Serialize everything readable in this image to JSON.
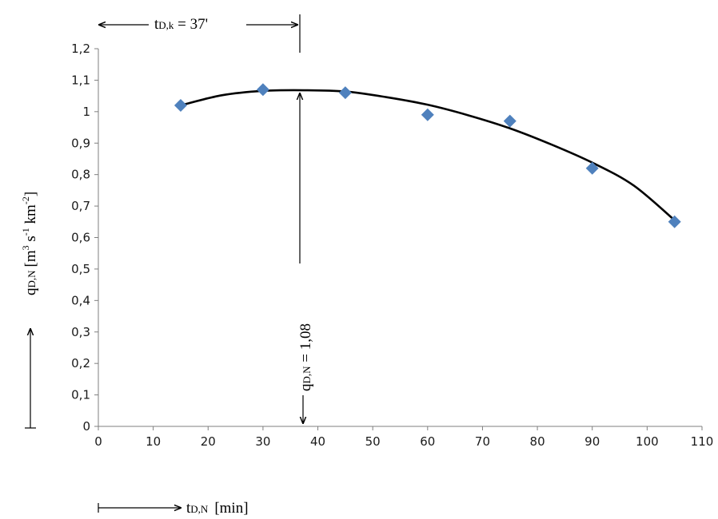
{
  "chart_data": {
    "type": "scatter",
    "title": "",
    "x": [
      15,
      30,
      45,
      60,
      75,
      90,
      105
    ],
    "series": [
      {
        "name": "",
        "type": "scatter",
        "color": "#4f81bd",
        "marker": "diamond",
        "values": [
          1.02,
          1.07,
          1.06,
          0.99,
          0.97,
          0.82,
          0.65
        ]
      }
    ],
    "trend": {
      "type": "polynomial-2",
      "color": "#000000",
      "x": [
        15,
        22.5,
        30,
        37.5,
        45,
        52.5,
        60,
        67.5,
        75,
        82.5,
        90,
        97.5,
        105
      ],
      "values": [
        1.02,
        1.052,
        1.066,
        1.068,
        1.064,
        1.046,
        1.022,
        0.988,
        0.947,
        0.896,
        0.838,
        0.766,
        0.655
      ]
    },
    "xlim": [
      0,
      110
    ],
    "ylim": [
      0,
      1.2
    ],
    "x_ticks": [
      0,
      10,
      20,
      30,
      40,
      50,
      60,
      70,
      80,
      90,
      100,
      110
    ],
    "x_tick_labels": [
      "0",
      "10",
      "20",
      "30",
      "40",
      "50",
      "60",
      "70",
      "80",
      "90",
      "100",
      "110"
    ],
    "y_ticks": [
      0,
      0.1,
      0.2,
      0.3,
      0.4,
      0.5,
      0.6,
      0.7,
      0.8,
      0.9,
      1.0,
      1.1,
      1.2
    ],
    "y_tick_labels": [
      "0",
      "0,1",
      "0,2",
      "0,3",
      "0,4",
      "0,5",
      "0,6",
      "0,7",
      "0,8",
      "0,9",
      "1",
      "1,1",
      "1,2"
    ],
    "xlabel": {
      "main": "t",
      "sub": "D,N",
      "unit": "[min]"
    },
    "ylabel": {
      "main": "q",
      "sub": "D,N",
      "unit_parts": [
        "[m",
        "3",
        " s",
        "-1",
        " km",
        "-2",
        "]"
      ]
    },
    "annotations": {
      "critical_time": {
        "x": 37,
        "main": "t",
        "sub": "D,k",
        "rest": " = 37'"
      },
      "peak_value": {
        "y": 1.08,
        "main": "q",
        "sub": "D,N",
        "rest": " = 1,08"
      }
    }
  }
}
